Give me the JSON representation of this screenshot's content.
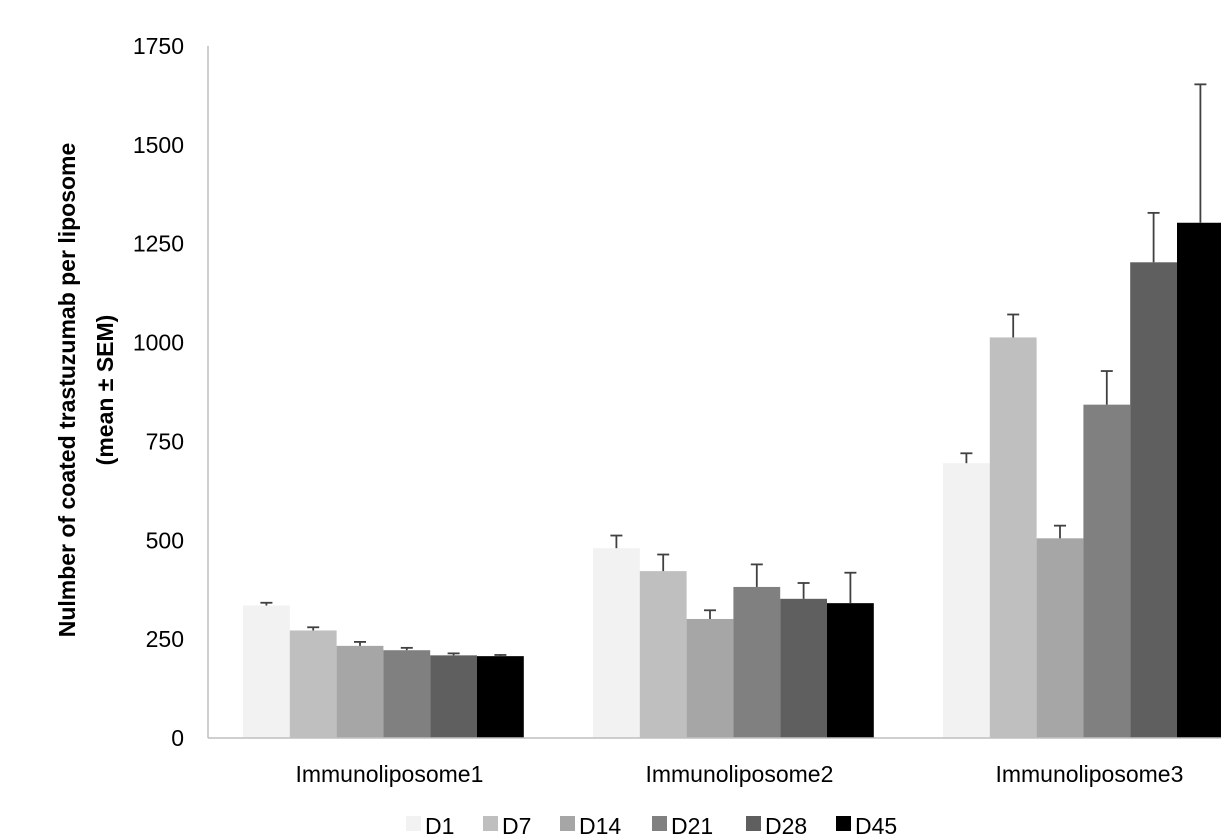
{
  "chart_data": {
    "type": "bar",
    "title": "",
    "xlabel": "",
    "ylabel_lines": [
      "Nulmber of coated trastuzumab per liposome",
      "(mean ± SEM)"
    ],
    "categories": [
      "Immunoliposome1",
      "Immunoliposome2",
      "Immunoliposome3"
    ],
    "ylim": [
      0,
      1750
    ],
    "yticks": [
      0,
      250,
      500,
      750,
      1000,
      1250,
      1500,
      1750
    ],
    "grid": false,
    "legend_position": "bottom",
    "series": [
      {
        "name": "D1",
        "color": "#f2f2f2",
        "values": [
          335,
          480,
          695
        ],
        "errors": [
          7,
          32,
          25
        ]
      },
      {
        "name": "D7",
        "color": "#bfbfbf",
        "values": [
          272,
          422,
          1013
        ],
        "errors": [
          8,
          42,
          58
        ]
      },
      {
        "name": "D14",
        "color": "#a6a6a6",
        "values": [
          233,
          301,
          505
        ],
        "errors": [
          10,
          22,
          32
        ]
      },
      {
        "name": "D21",
        "color": "#808080",
        "values": [
          222,
          382,
          843
        ],
        "errors": [
          6,
          57,
          85
        ]
      },
      {
        "name": "D28",
        "color": "#5f5f5f",
        "values": [
          209,
          352,
          1203
        ],
        "errors": [
          5,
          40,
          125
        ]
      },
      {
        "name": "D45",
        "color": "#000000",
        "values": [
          207,
          341,
          1303
        ],
        "errors": [
          3,
          77,
          350
        ]
      }
    ]
  }
}
